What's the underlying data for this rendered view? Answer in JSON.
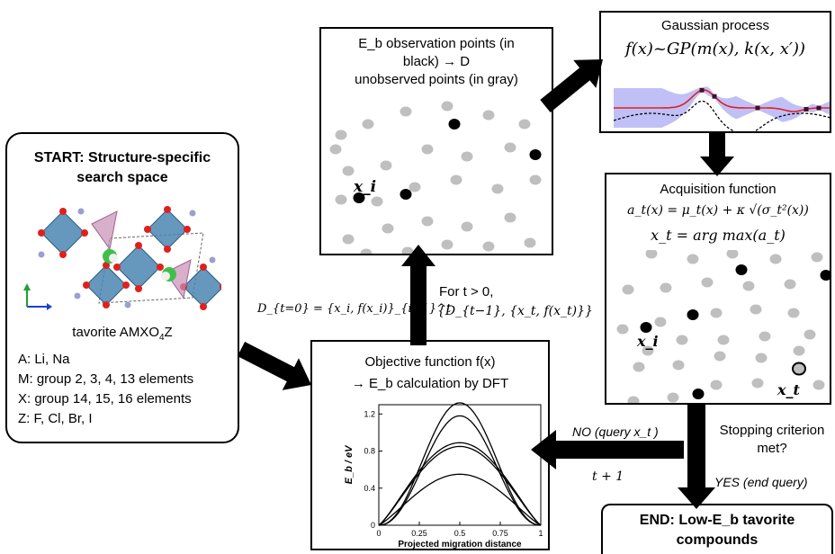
{
  "start": {
    "title_line1": "START: Structure-specific",
    "title_line2": "search space",
    "compound_prefix": "tavorite AMXO",
    "compound_sub": "4",
    "compound_suffix": "Z",
    "elements": [
      "A: Li, Na",
      "M: group 2, 3, 4, 13 elements",
      "X: group 14, 15, 16 elements",
      "Z: F, Cl, Br, I"
    ]
  },
  "observe": {
    "line1": "E_b observation points (in",
    "line2": "black) → D",
    "line3": "unobserved points (in gray)",
    "point_label": "x_i"
  },
  "gp": {
    "title": "Gaussian process",
    "formula": "f(x)~GP(m(x), k(x, x′))"
  },
  "acq": {
    "title": "Acquisition function",
    "formula1": "a_t(x) = μ_t(x) + κ √(σ_t²(x))",
    "formula2": "x_t = arg max(a_t)",
    "label_xi": "x_i",
    "label_xt": "x_t"
  },
  "objective": {
    "line1": "Objective function f(x)",
    "line2": "→ E_b calculation by DFT",
    "chart": {
      "ylabel": "E_b / eV",
      "xlabel": "Projected migration distance",
      "y_ticks": [
        "1.2",
        "0.8",
        "0.4",
        "0"
      ],
      "x_ticks": [
        "0",
        "0.25",
        "0.5",
        "0.75",
        "1"
      ]
    }
  },
  "labels": {
    "d_init": "D_{t=0} = {x_i, f(x_i)}_{i=1}^t",
    "for_t": "For t > 0,",
    "d_update": "{D_{t−1}, {x_t, f(x_t)}}",
    "no_query": "NO (query x_t )",
    "t_plus_1": "t + 1",
    "stop_line1": "Stopping criterion",
    "stop_line2": "met?",
    "yes_end": "YES (end query)"
  },
  "end": {
    "line1": "END: Low-E_b tavorite",
    "line2": "compounds"
  },
  "colors": {
    "crystal_blue": "#4a86b0",
    "crystal_pink": "#c98fb5",
    "oxygen_red": "#e0201c",
    "gray_point": "#bfbfbf",
    "gp_band": "#8c8cf0",
    "gp_mean": "#e02020",
    "halogen_green": "#3fbf4a"
  },
  "chart_data": {
    "type": "line",
    "xlabel": "Projected migration distance",
    "ylabel": "E_b / eV",
    "xlim": [
      0,
      1
    ],
    "ylim": [
      0,
      1.3
    ],
    "x_ticks": [
      0,
      0.25,
      0.5,
      0.75,
      1
    ],
    "y_ticks": [
      0,
      0.4,
      0.8,
      1.2
    ],
    "series": [
      {
        "peak": 1.32,
        "shape": "sharp"
      },
      {
        "peak": 1.18,
        "shape": "sharp"
      },
      {
        "peak": 0.89,
        "shape": "broad"
      },
      {
        "peak": 0.85,
        "shape": "broad"
      },
      {
        "peak": 0.55,
        "shape": "broad"
      }
    ]
  }
}
